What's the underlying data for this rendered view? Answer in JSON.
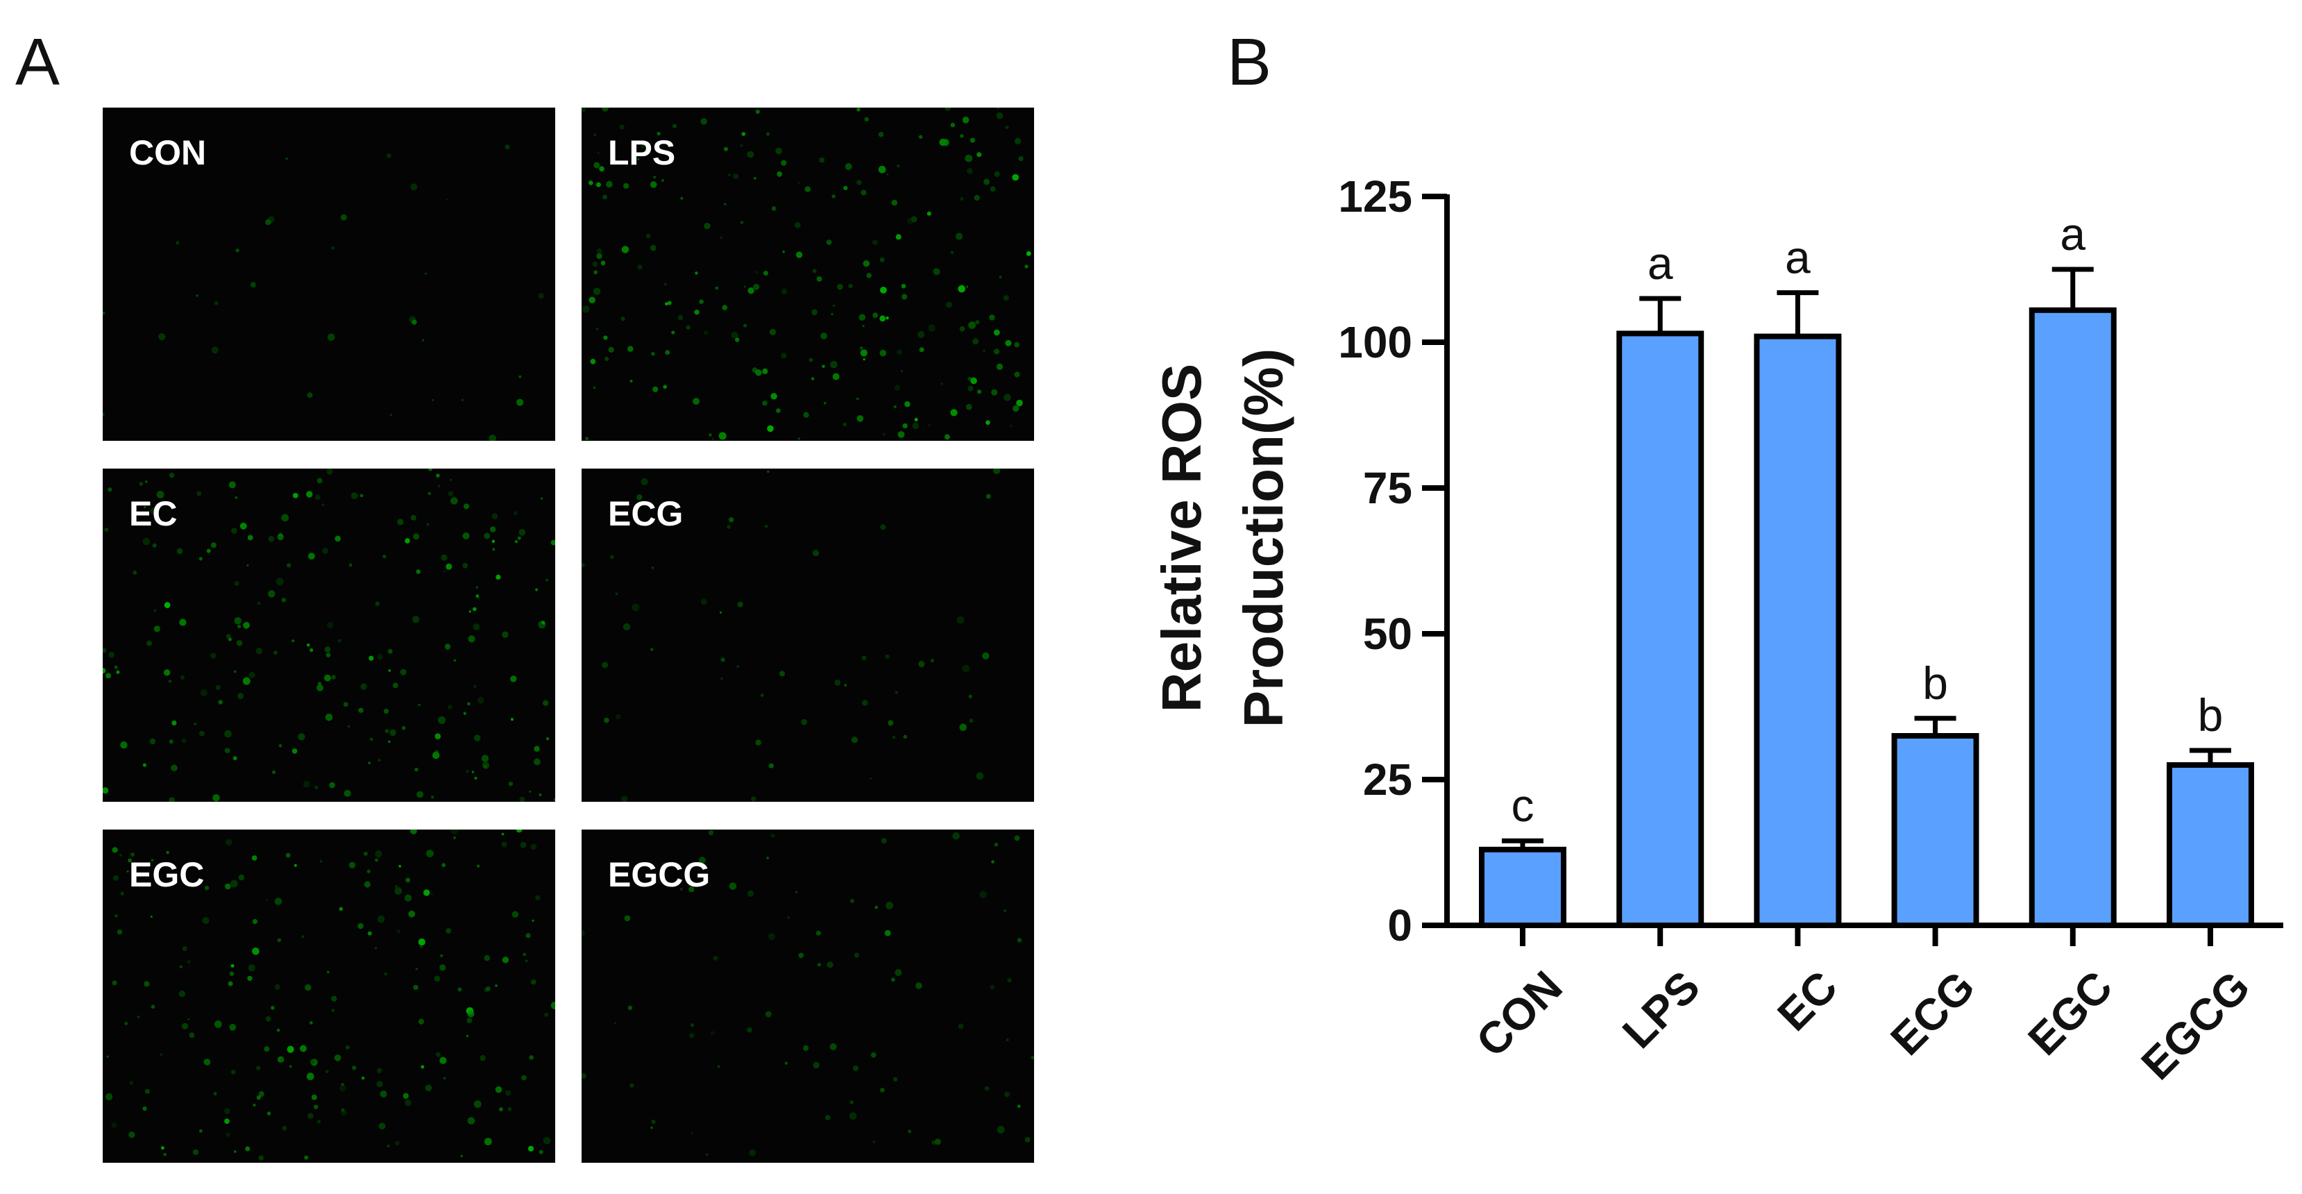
{
  "panels": {
    "a": "A",
    "b": "B"
  },
  "micrographs": [
    {
      "label": "CON",
      "intensity": 0.05
    },
    {
      "label": "LPS",
      "intensity": 0.95
    },
    {
      "label": "EC",
      "intensity": 0.85
    },
    {
      "label": "ECG",
      "intensity": 0.15
    },
    {
      "label": "EGC",
      "intensity": 0.8
    },
    {
      "label": "EGCG",
      "intensity": 0.25
    }
  ],
  "chart_data": {
    "type": "bar",
    "categories": [
      "CON",
      "LPS",
      "EC",
      "ECG",
      "EGC",
      "EGCG"
    ],
    "values": [
      13,
      101.5,
      101,
      32.5,
      105.5,
      27.5
    ],
    "errors": [
      1.5,
      6,
      7.5,
      3,
      7,
      2.5
    ],
    "significance": [
      "c",
      "a",
      "a",
      "b",
      "a",
      "b"
    ],
    "ylabel": [
      "Relative ROS",
      "Production(%)"
    ],
    "ylim": [
      0,
      125
    ],
    "yticks": [
      0,
      25,
      50,
      75,
      100,
      125
    ],
    "bar_color": "#5aa0ff",
    "grid": false
  }
}
